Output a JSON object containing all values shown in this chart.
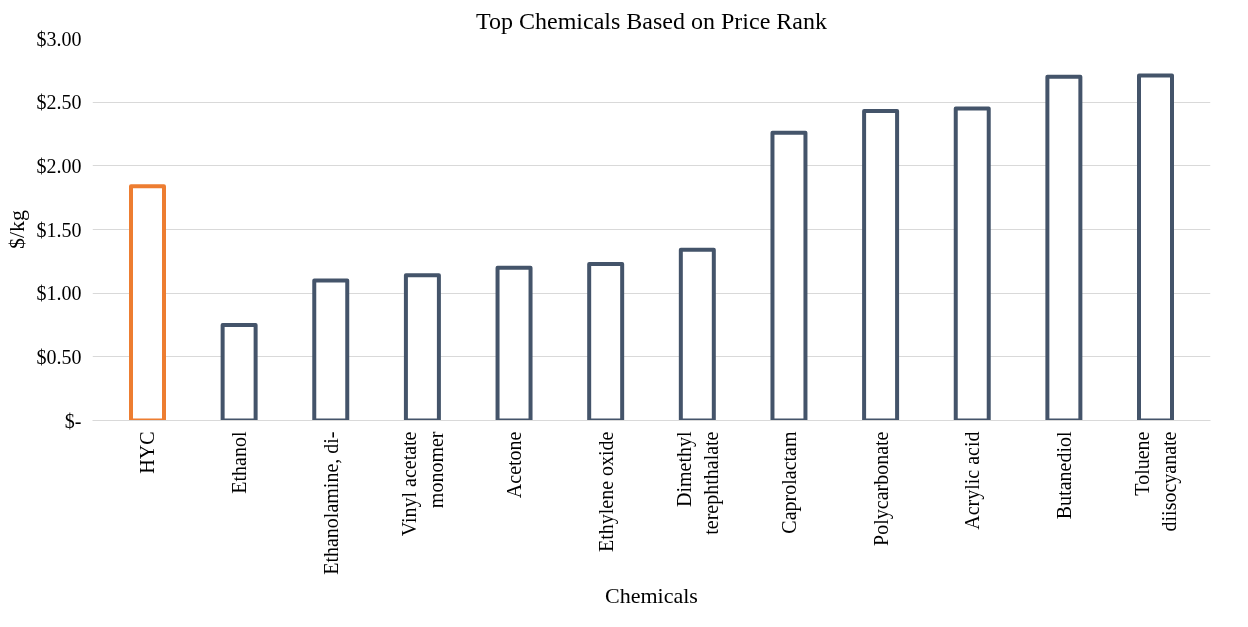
{
  "chart_data": {
    "type": "bar",
    "title": "Top Chemicals Based on Price Rank",
    "xlabel": "Chemicals",
    "ylabel": "$/kg",
    "categories": [
      "HYC",
      "Ethanol",
      "Ethanolamine, di-",
      "Vinyl acetate monomer",
      "Acetone",
      "Ethylene oxide",
      "Dimethyl terephthalate",
      "Caprolactam",
      "Polycarbonate",
      "Acrylic acid",
      "Butanediol",
      "Toluene diisocyanate"
    ],
    "values": [
      1.84,
      0.75,
      1.1,
      1.14,
      1.2,
      1.23,
      1.34,
      2.26,
      2.43,
      2.45,
      2.7,
      2.71
    ],
    "colors": [
      "#ed7d31",
      "#44546a",
      "#44546a",
      "#44546a",
      "#44546a",
      "#44546a",
      "#44546a",
      "#44546a",
      "#44546a",
      "#44546a",
      "#44546a",
      "#44546a"
    ],
    "ylim": [
      0,
      3
    ],
    "yticks": [
      {
        "value": 0,
        "label": "$-"
      },
      {
        "value": 0.5,
        "label": "$0.50"
      },
      {
        "value": 1,
        "label": "$1.00"
      },
      {
        "value": 1.5,
        "label": "$1.50"
      },
      {
        "value": 2,
        "label": "$2.00"
      },
      {
        "value": 2.5,
        "label": "$2.50"
      },
      {
        "value": 3,
        "label": "$3.00"
      }
    ],
    "grid": "y"
  }
}
